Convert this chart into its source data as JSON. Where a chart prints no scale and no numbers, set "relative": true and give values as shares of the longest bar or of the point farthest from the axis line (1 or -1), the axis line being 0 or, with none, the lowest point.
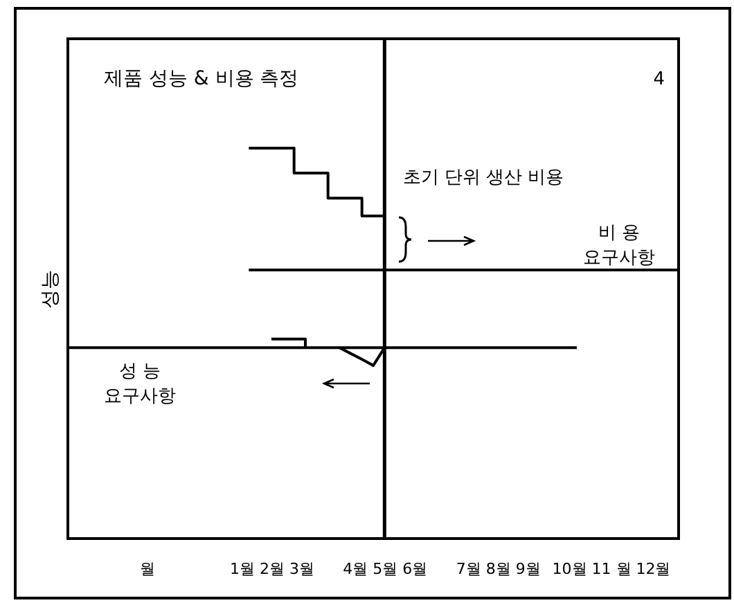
{
  "chart_data": {
    "type": "line",
    "title": "제품 성능 & 비용 측정",
    "ylabel": "성능",
    "relative": true,
    "categories": [
      null,
      null,
      null,
      null,
      null,
      null,
      null,
      "월",
      null,
      null,
      null,
      null,
      null,
      null,
      null,
      null,
      null,
      null,
      "1월 2월 3월",
      null,
      null,
      null,
      null,
      null,
      null,
      null,
      null,
      null,
      "4월 5월 6월",
      null,
      null,
      null,
      null,
      null,
      null,
      null,
      null,
      null,
      "7월 8월 9월",
      null,
      null,
      null,
      null,
      null,
      null,
      null,
      null,
      null,
      "10월 11 월 12월",
      null,
      null,
      null,
      null,
      null,
      null
    ],
    "grid": false,
    "tick_labels": "x",
    "series": [
      {
        "type": "step",
        "color": "#000000",
        "values": [
          null,
          null,
          null,
          null,
          null,
          null,
          null,
          null,
          null,
          null,
          null,
          null,
          null,
          null,
          null,
          null,
          1,
          1,
          1,
          1,
          0.936,
          0.936,
          0.936,
          0.872,
          0.872,
          0.872,
          0.826,
          0.826,
          0.826,
          null,
          null,
          null,
          null,
          null,
          null,
          null,
          null,
          null,
          null,
          null,
          null,
          null,
          null,
          null,
          null,
          null,
          null,
          null,
          null,
          null,
          null,
          null,
          null,
          null,
          null
        ]
      },
      {
        "type": "line",
        "color": "#000000",
        "values": [
          null,
          null,
          null,
          null,
          null,
          null,
          null,
          null,
          null,
          null,
          null,
          null,
          null,
          null,
          null,
          null,
          0.688,
          0.688,
          0.688,
          0.688,
          0.688,
          0.688,
          0.688,
          0.688,
          0.688,
          0.688,
          0.688,
          0.688,
          0.688,
          0.688,
          0.688,
          0.688,
          0.688,
          0.688,
          0.688,
          0.688,
          0.688,
          0.688,
          0.688,
          0.688,
          0.688,
          0.688,
          0.688,
          0.688,
          0.688,
          0.688,
          0.688,
          0.688,
          0.688,
          0.688,
          0.688,
          0.688,
          0.688,
          0.688,
          0.688
        ]
      },
      {
        "type": "line",
        "color": "#000000",
        "values": [
          0.489,
          0.489,
          0.489,
          0.489,
          0.489,
          0.489,
          0.489,
          0.489,
          0.489,
          0.489,
          0.489,
          0.489,
          0.489,
          0.489,
          0.489,
          0.489,
          0.489,
          0.489,
          0.489,
          0.489,
          0.489,
          0.489,
          0.489,
          0.489,
          0.489,
          0.489,
          0.489,
          0.489,
          0.489,
          0.489,
          0.489,
          0.489,
          0.489,
          0.489,
          0.489,
          0.489,
          0.489,
          0.489,
          0.489,
          0.489,
          0.489,
          0.489,
          0.489,
          0.489,
          0.489,
          0.489,
          null,
          null,
          null,
          null,
          null,
          null,
          null,
          null,
          null
        ]
      },
      {
        "type": "step",
        "color": "#000000",
        "values": [
          null,
          null,
          null,
          null,
          null,
          null,
          null,
          null,
          null,
          null,
          null,
          null,
          null,
          null,
          null,
          null,
          null,
          null,
          0.511,
          0.511,
          0.511,
          0.489,
          null,
          null,
          null,
          null,
          null,
          null,
          null,
          null,
          null,
          null,
          null,
          null,
          null,
          null,
          null,
          null,
          null,
          null,
          null,
          null,
          null,
          null,
          null,
          null,
          null,
          null,
          null,
          null,
          null,
          null,
          null,
          null,
          null
        ]
      },
      {
        "type": "line",
        "color": "#000000",
        "values": [
          null,
          null,
          null,
          null,
          null,
          null,
          null,
          null,
          null,
          null,
          null,
          null,
          null,
          null,
          null,
          null,
          null,
          null,
          null,
          null,
          null,
          null,
          null,
          null,
          0.489,
          0.474,
          0.459,
          0.443,
          0.489,
          null,
          null,
          null,
          null,
          null,
          null,
          null,
          null,
          null,
          null,
          null,
          null,
          null,
          null,
          null,
          null,
          null,
          null,
          null,
          null,
          null,
          null,
          null,
          null,
          null,
          null
        ]
      }
    ],
    "ref_lines": [
      {
        "axis": "x",
        "value": "4월 5월 6월"
      }
    ],
    "annotations": [
      "4",
      "초기 단위 생산 비용",
      "비 용\n요구사항",
      "성 능\n요구사항"
    ]
  }
}
